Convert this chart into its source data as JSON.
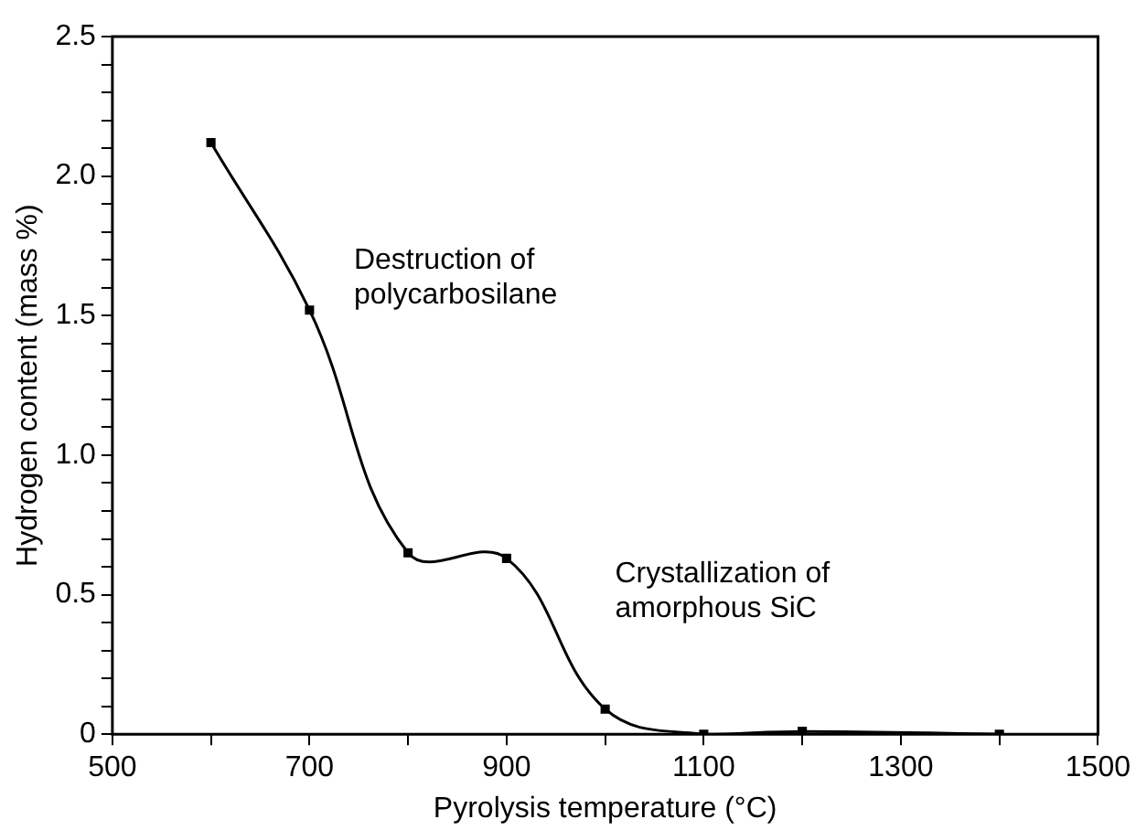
{
  "chart_data": {
    "type": "line",
    "xlabel": "Pyrolysis temperature (°C)",
    "ylabel": "Hydrogen content (mass %)",
    "x": [
      600,
      700,
      800,
      900,
      1000,
      1100,
      1200,
      1400
    ],
    "series": [
      {
        "color": "#000000",
        "values": [
          2.12,
          1.52,
          0.65,
          0.63,
          0.09,
          0,
          0.01,
          0
        ]
      }
    ],
    "xlim": [
      500,
      1500
    ],
    "xticks": [
      500,
      {
        "value": 600,
        "label": null
      },
      700,
      {
        "value": 800,
        "label": null
      },
      900,
      {
        "value": 1000,
        "label": null
      },
      1100,
      {
        "value": 1200,
        "label": null
      },
      1300,
      {
        "value": 1400,
        "label": null
      },
      1500
    ],
    "ylim": [
      0,
      2.5
    ],
    "yticks": [
      0,
      {
        "value": 0.1,
        "label": null
      },
      {
        "value": 0.2,
        "label": null
      },
      {
        "value": 0.3,
        "label": null
      },
      {
        "value": 0.4,
        "label": null
      },
      0.5,
      {
        "value": 0.6,
        "label": null
      },
      {
        "value": 0.7,
        "label": null
      },
      {
        "value": 0.8,
        "label": null
      },
      {
        "value": 0.9,
        "label": null
      },
      {
        "value": 1,
        "label": "1.0"
      },
      {
        "value": 1.1,
        "label": null
      },
      {
        "value": 1.2,
        "label": null
      },
      {
        "value": 1.3,
        "label": null
      },
      {
        "value": 1.4,
        "label": null
      },
      1.5,
      {
        "value": 1.6,
        "label": null
      },
      {
        "value": 1.7,
        "label": null
      },
      {
        "value": 1.8,
        "label": null
      },
      {
        "value": 1.9,
        "label": null
      },
      {
        "value": 2,
        "label": "2.0"
      },
      {
        "value": 2.1,
        "label": null
      },
      {
        "value": 2.2,
        "label": null
      },
      {
        "value": 2.3,
        "label": null
      },
      {
        "value": 2.4,
        "label": null
      },
      2.5
    ],
    "annotations": [
      "Destruction of\npolycarbosilane",
      "Crystallization of\namorphous SiC"
    ],
    "grid": false,
    "legend": false,
    "marker": "square",
    "line_style": "solid"
  }
}
